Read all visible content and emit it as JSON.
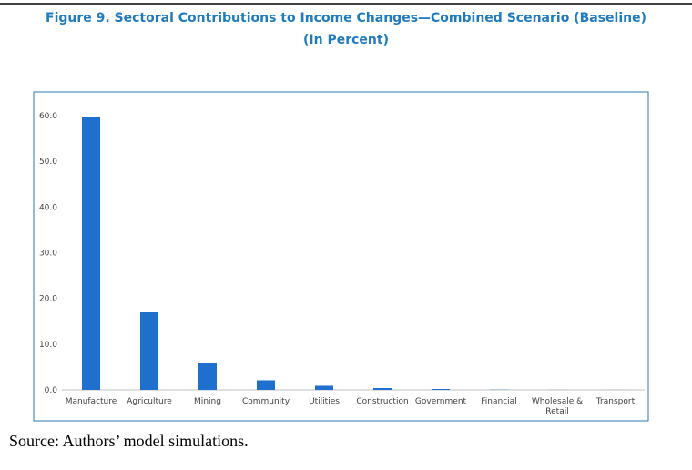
{
  "chart_data": {
    "type": "bar",
    "title": "Figure 9. Sectoral Contributions to Income Changes—Combined Scenario (Baseline)",
    "subtitle": "(In Percent)",
    "source": "Source: Authors’ model simulations.",
    "categories": [
      "Manufacture",
      "Agriculture",
      "Mining",
      "Community",
      "Utilities",
      "Construction",
      "Government",
      "Financial",
      "Wholesale & Retail",
      "Transport"
    ],
    "values": [
      59.8,
      17.1,
      5.8,
      2.1,
      0.9,
      0.4,
      0.2,
      0.05,
      0.02,
      0.01
    ],
    "color": "#1f6fce",
    "ylim": [
      0,
      60
    ],
    "yticks": [
      {
        "value": 0,
        "label": "0.0"
      },
      {
        "value": 10,
        "label": "10.0"
      },
      {
        "value": 20,
        "label": "20.0"
      },
      {
        "value": 30,
        "label": "30.0"
      },
      {
        "value": 40,
        "label": "40.0"
      },
      {
        "value": 50,
        "label": "50.0"
      },
      {
        "value": 60,
        "label": "60.0"
      }
    ],
    "grid": false
  }
}
